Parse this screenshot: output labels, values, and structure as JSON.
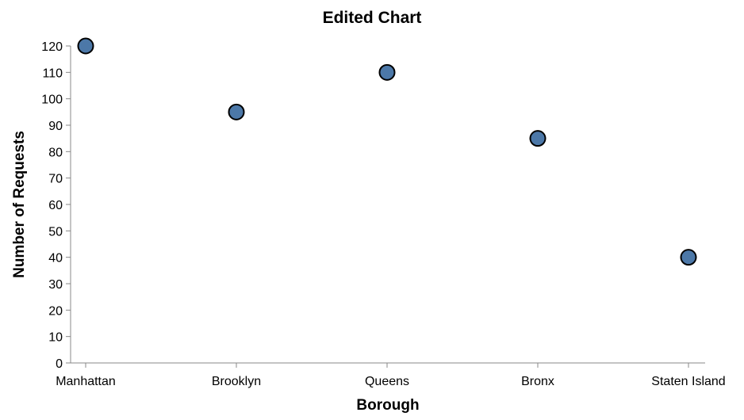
{
  "chart_data": {
    "type": "scatter",
    "title": "Edited Chart",
    "xlabel": "Borough",
    "ylabel": "Number of Requests",
    "categories": [
      "Manhattan",
      "Brooklyn",
      "Queens",
      "Bronx",
      "Staten Island"
    ],
    "values": [
      120,
      95,
      110,
      85,
      40
    ],
    "ylim": [
      0,
      120
    ],
    "yticks": [
      0,
      10,
      20,
      30,
      40,
      50,
      60,
      70,
      80,
      90,
      100,
      110,
      120
    ],
    "grid": false,
    "legend": "none",
    "point_color": "#4c78a8",
    "point_stroke": "#000000"
  }
}
